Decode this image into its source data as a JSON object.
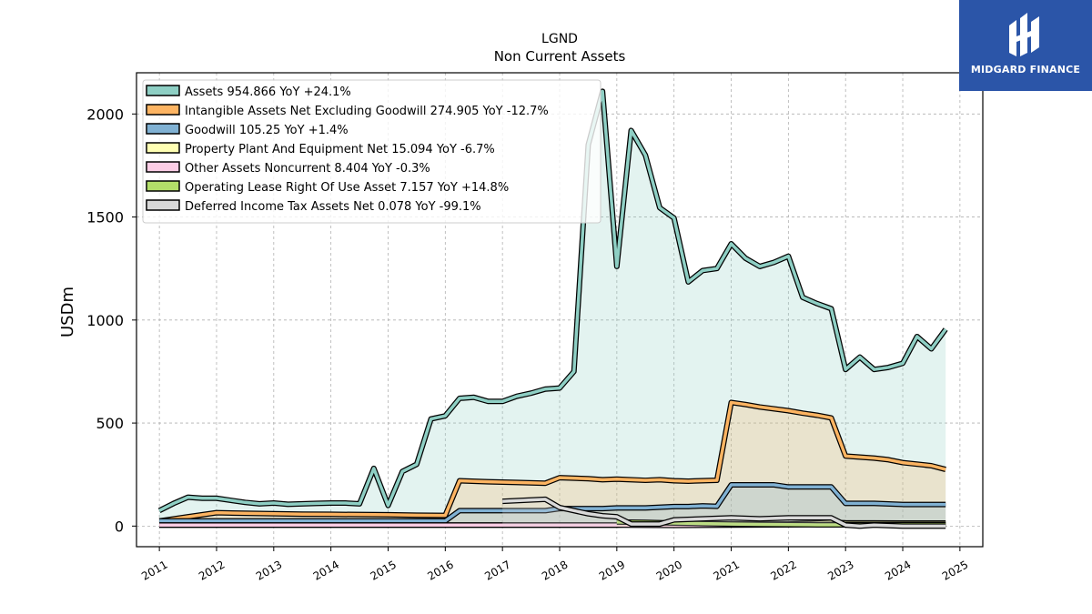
{
  "brand": {
    "name": "MIDGARD FINANCE",
    "logo_icon": "midgard-logo-icon",
    "background": "#2b55a8"
  },
  "chart_data": {
    "type": "area",
    "title": "LGND",
    "subtitle": "Non Current  Assets",
    "ylabel": "USDm",
    "xlabel": "",
    "xlim": [
      2010.6,
      2025.4
    ],
    "ylim": [
      -100,
      2200
    ],
    "yticks": [
      0,
      500,
      1000,
      1500,
      2000
    ],
    "xticks": [
      "2011",
      "2012",
      "2013",
      "2014",
      "2015",
      "2016",
      "2017",
      "2018",
      "2019",
      "2020",
      "2021",
      "2022",
      "2023",
      "2024",
      "2025"
    ],
    "grid": true,
    "legend_position": "top-left",
    "series": [
      {
        "name": "Assets  954.866 YoY +24.1%",
        "color": "#8ecfc4",
        "points": [
          [
            2011.0,
            75
          ],
          [
            2011.25,
            110
          ],
          [
            2011.5,
            140
          ],
          [
            2011.75,
            135
          ],
          [
            2012.0,
            135
          ],
          [
            2012.25,
            125
          ],
          [
            2012.5,
            115
          ],
          [
            2012.75,
            108
          ],
          [
            2013.0,
            112
          ],
          [
            2013.25,
            106
          ],
          [
            2013.5,
            108
          ],
          [
            2013.75,
            110
          ],
          [
            2014.0,
            112
          ],
          [
            2014.25,
            112
          ],
          [
            2014.5,
            108
          ],
          [
            2014.75,
            280
          ],
          [
            2015.0,
            100
          ],
          [
            2015.25,
            265
          ],
          [
            2015.5,
            300
          ],
          [
            2015.75,
            520
          ],
          [
            2016.0,
            535
          ],
          [
            2016.25,
            620
          ],
          [
            2016.5,
            625
          ],
          [
            2016.75,
            605
          ],
          [
            2017.0,
            605
          ],
          [
            2017.25,
            630
          ],
          [
            2017.5,
            645
          ],
          [
            2017.75,
            665
          ],
          [
            2018.0,
            670
          ],
          [
            2018.25,
            750
          ],
          [
            2018.5,
            1850
          ],
          [
            2018.75,
            2110
          ],
          [
            2019.0,
            1260
          ],
          [
            2019.25,
            1920
          ],
          [
            2019.5,
            1800
          ],
          [
            2019.75,
            1545
          ],
          [
            2020.0,
            1495
          ],
          [
            2020.25,
            1185
          ],
          [
            2020.5,
            1240
          ],
          [
            2020.75,
            1250
          ],
          [
            2021.0,
            1370
          ],
          [
            2021.25,
            1300
          ],
          [
            2021.5,
            1260
          ],
          [
            2021.75,
            1280
          ],
          [
            2022.0,
            1310
          ],
          [
            2022.25,
            1110
          ],
          [
            2022.5,
            1080
          ],
          [
            2022.75,
            1055
          ],
          [
            2023.0,
            760
          ],
          [
            2023.25,
            820
          ],
          [
            2023.5,
            760
          ],
          [
            2023.75,
            770
          ],
          [
            2024.0,
            790
          ],
          [
            2024.25,
            920
          ],
          [
            2024.5,
            860
          ],
          [
            2024.75,
            955
          ]
        ]
      },
      {
        "name": "Intangible Assets Net Excluding Goodwill  274.905 YoY -12.7%",
        "color": "#fdb462",
        "points": [
          [
            2011.0,
            25
          ],
          [
            2011.5,
            45
          ],
          [
            2012.0,
            65
          ],
          [
            2012.5,
            62
          ],
          [
            2013.0,
            60
          ],
          [
            2013.5,
            58
          ],
          [
            2014.0,
            57
          ],
          [
            2014.5,
            56
          ],
          [
            2015.0,
            55
          ],
          [
            2015.5,
            53
          ],
          [
            2016.0,
            52
          ],
          [
            2016.25,
            220
          ],
          [
            2016.75,
            215
          ],
          [
            2017.25,
            212
          ],
          [
            2017.75,
            208
          ],
          [
            2018.0,
            235
          ],
          [
            2018.5,
            230
          ],
          [
            2018.75,
            225
          ],
          [
            2019.0,
            228
          ],
          [
            2019.5,
            222
          ],
          [
            2019.75,
            225
          ],
          [
            2020.0,
            220
          ],
          [
            2020.25,
            218
          ],
          [
            2020.75,
            222
          ],
          [
            2021.0,
            600
          ],
          [
            2021.25,
            590
          ],
          [
            2021.5,
            578
          ],
          [
            2022.0,
            560
          ],
          [
            2022.25,
            548
          ],
          [
            2022.5,
            538
          ],
          [
            2022.75,
            525
          ],
          [
            2023.0,
            340
          ],
          [
            2023.5,
            330
          ],
          [
            2023.75,
            322
          ],
          [
            2024.0,
            308
          ],
          [
            2024.5,
            293
          ],
          [
            2024.75,
            275
          ]
        ]
      },
      {
        "name": "Goodwill  105.25 YoY +1.4%",
        "color": "#80b1d3",
        "points": [
          [
            2011.0,
            25
          ],
          [
            2011.5,
            25
          ],
          [
            2012.0,
            25
          ],
          [
            2013.0,
            25
          ],
          [
            2014.0,
            25
          ],
          [
            2015.0,
            25
          ],
          [
            2016.0,
            25
          ],
          [
            2016.25,
            75
          ],
          [
            2017.0,
            75
          ],
          [
            2017.75,
            75
          ],
          [
            2018.0,
            85
          ],
          [
            2018.75,
            85
          ],
          [
            2019.0,
            88
          ],
          [
            2019.5,
            88
          ],
          [
            2020.0,
            95
          ],
          [
            2020.25,
            95
          ],
          [
            2020.5,
            98
          ],
          [
            2020.75,
            96
          ],
          [
            2021.0,
            200
          ],
          [
            2021.75,
            200
          ],
          [
            2022.0,
            190
          ],
          [
            2022.75,
            190
          ],
          [
            2023.0,
            110
          ],
          [
            2023.5,
            110
          ],
          [
            2024.0,
            105
          ],
          [
            2024.75,
            105
          ]
        ]
      },
      {
        "name": "Property Plant And Equipment Net  15.094 YoY -6.7%",
        "color": "#ffffb3",
        "points": [
          [
            2011.0,
            5
          ],
          [
            2012.0,
            5
          ],
          [
            2013.0,
            5
          ],
          [
            2014.0,
            5
          ],
          [
            2015.0,
            5
          ],
          [
            2016.0,
            5
          ],
          [
            2017.0,
            5
          ],
          [
            2018.0,
            5
          ],
          [
            2019.0,
            5
          ],
          [
            2019.5,
            10
          ],
          [
            2020.0,
            10
          ],
          [
            2021.0,
            10
          ],
          [
            2022.0,
            10
          ],
          [
            2022.75,
            18
          ],
          [
            2023.0,
            16
          ],
          [
            2024.0,
            15
          ],
          [
            2024.75,
            15
          ]
        ]
      },
      {
        "name": "Other Assets Noncurrent  8.404 YoY -0.3%",
        "color": "#fccde5",
        "points": [
          [
            2011.0,
            5
          ],
          [
            2012.0,
            5
          ],
          [
            2013.0,
            5
          ],
          [
            2014.0,
            5
          ],
          [
            2015.0,
            5
          ],
          [
            2016.0,
            5
          ],
          [
            2017.0,
            5
          ],
          [
            2018.0,
            5
          ],
          [
            2019.0,
            5
          ],
          [
            2020.0,
            3
          ],
          [
            2021.0,
            5
          ],
          [
            2022.0,
            6
          ],
          [
            2022.75,
            8
          ],
          [
            2023.0,
            8
          ],
          [
            2024.0,
            8
          ],
          [
            2024.75,
            8
          ]
        ]
      },
      {
        "name": "Operating Lease Right Of Use Asset  7.157 YoY +14.8%",
        "color": "#b3de69",
        "points": [
          [
            2019.0,
            20
          ],
          [
            2019.5,
            18
          ],
          [
            2020.0,
            15
          ],
          [
            2020.5,
            12
          ],
          [
            2021.0,
            10
          ],
          [
            2021.5,
            8
          ],
          [
            2022.0,
            7
          ],
          [
            2022.5,
            6
          ],
          [
            2023.0,
            6
          ],
          [
            2023.5,
            6
          ],
          [
            2024.0,
            7
          ],
          [
            2024.75,
            7
          ]
        ]
      },
      {
        "name": "Deferred Income Tax Assets Net  0.078 YoY -99.1%",
        "color": "#d9d9d9",
        "points": [
          [
            2017.0,
            120
          ],
          [
            2017.75,
            130
          ],
          [
            2018.0,
            90
          ],
          [
            2018.5,
            60
          ],
          [
            2018.75,
            50
          ],
          [
            2019.0,
            45
          ],
          [
            2019.25,
            10
          ],
          [
            2019.75,
            10
          ],
          [
            2020.0,
            30
          ],
          [
            2021.0,
            40
          ],
          [
            2021.5,
            35
          ],
          [
            2022.0,
            40
          ],
          [
            2022.75,
            40
          ],
          [
            2023.0,
            5
          ],
          [
            2023.25,
            0
          ],
          [
            2023.5,
            5
          ],
          [
            2024.0,
            0
          ],
          [
            2024.75,
            0
          ]
        ]
      }
    ]
  }
}
